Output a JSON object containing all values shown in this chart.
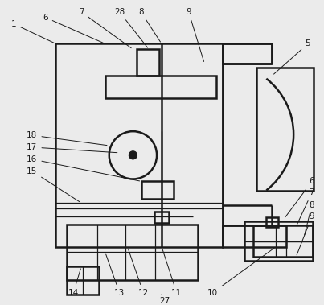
{
  "bg_color": "#ebebeb",
  "line_color": "#1a1a1a",
  "lw": 1.8,
  "tlw": 0.9
}
